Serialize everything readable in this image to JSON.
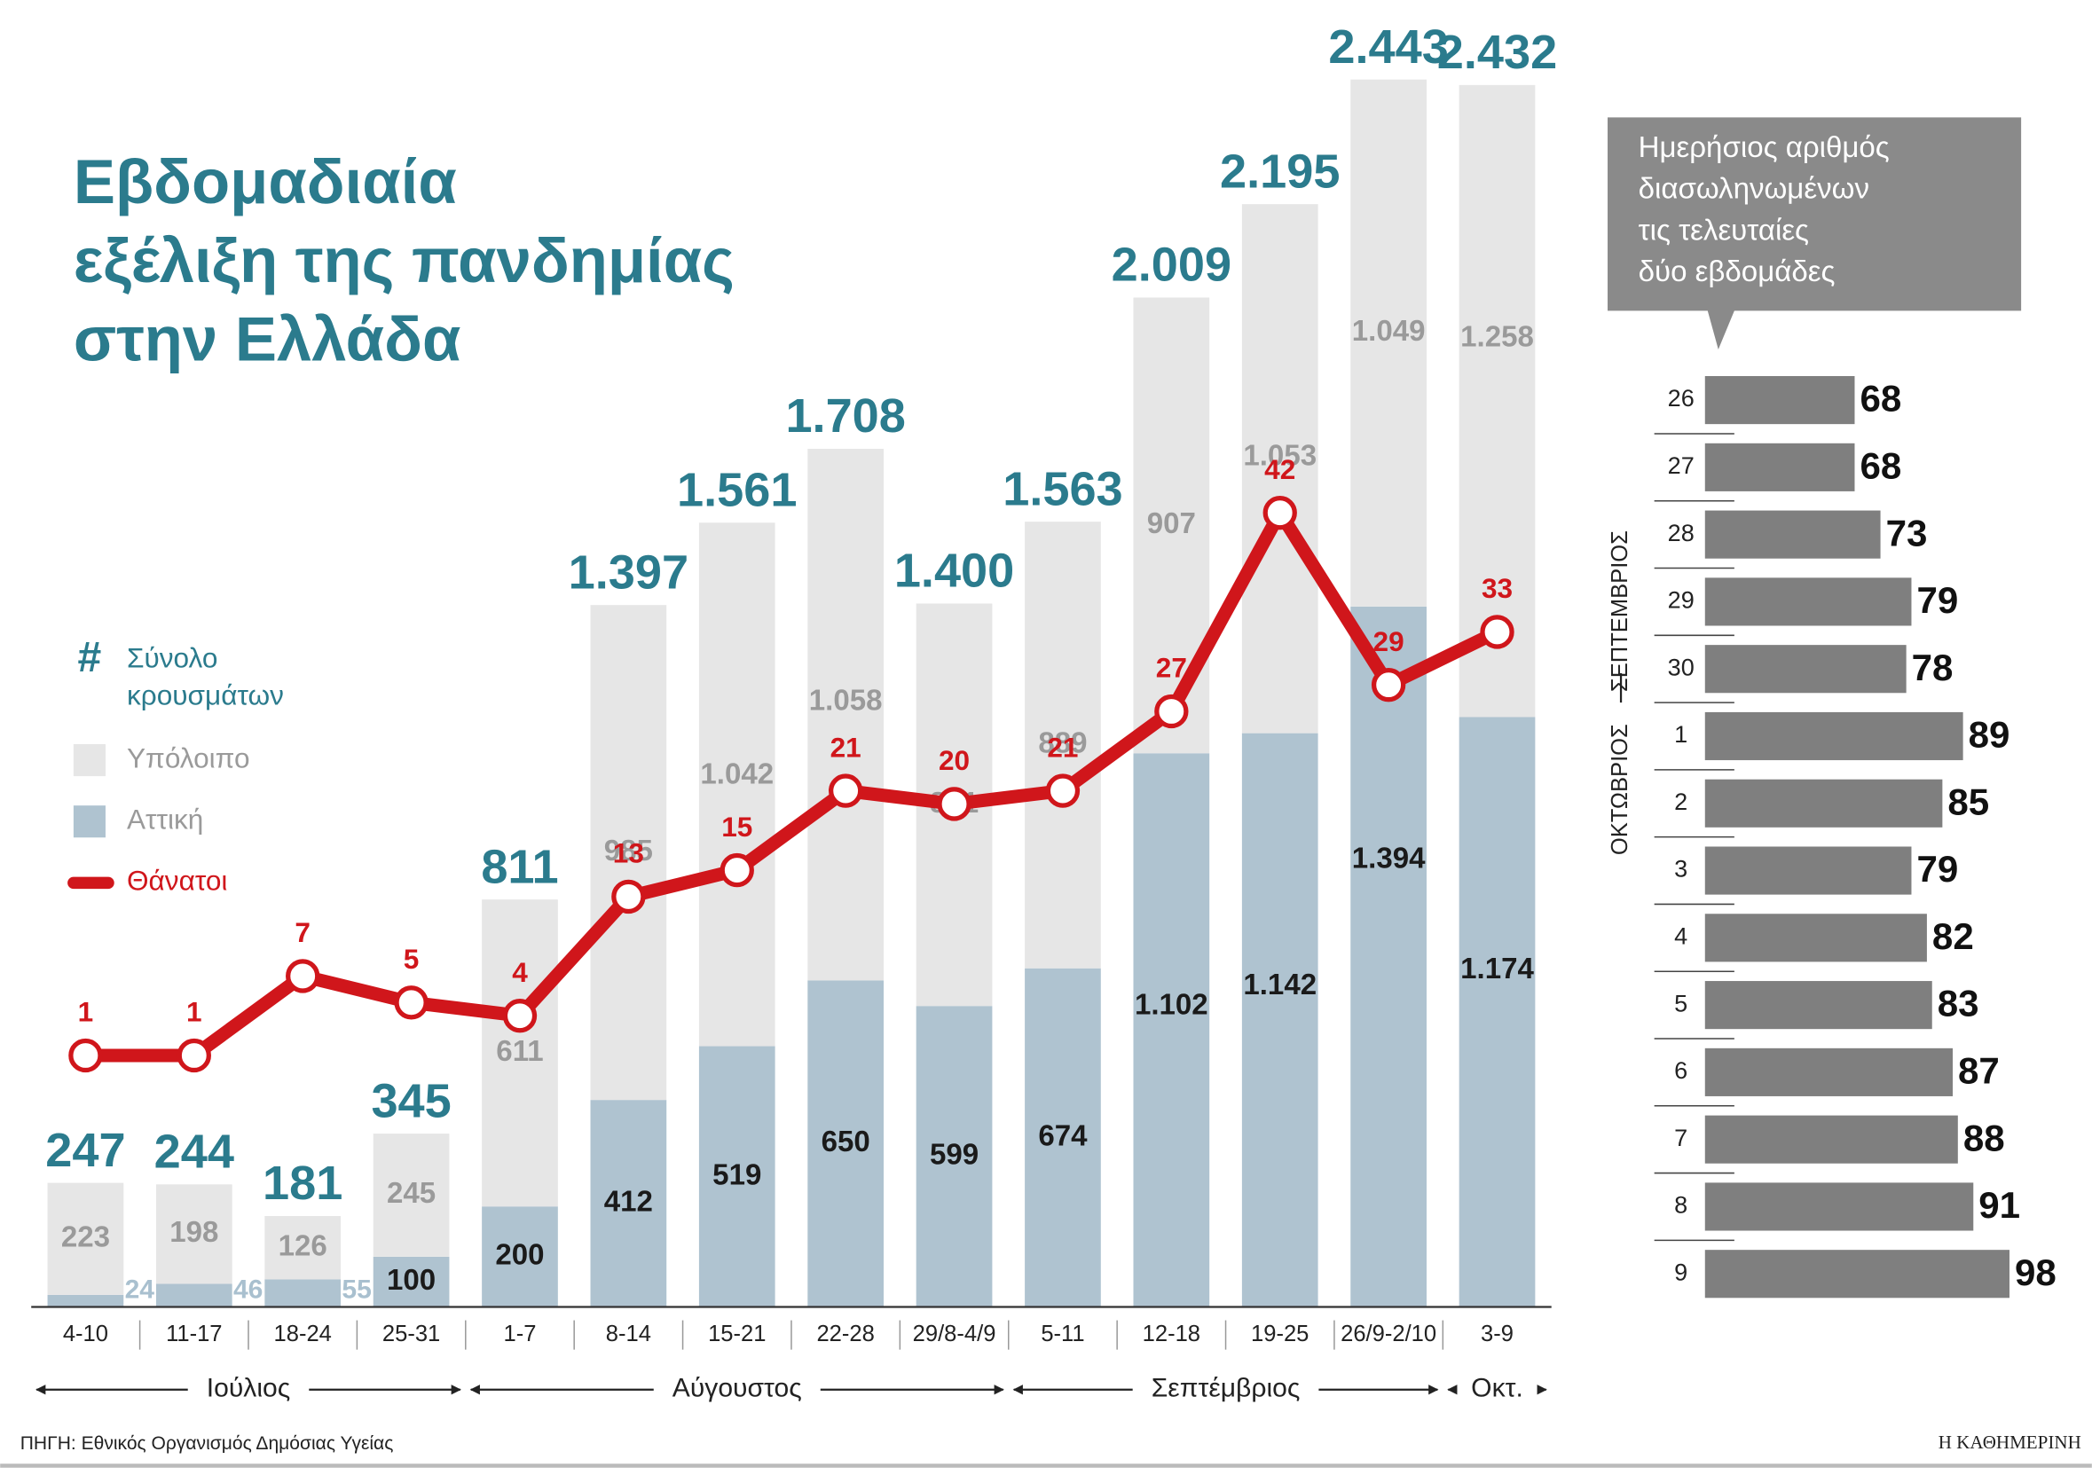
{
  "chart_data": [
    {
      "type": "combo",
      "title": [
        "Εβδομαδιαία",
        "εξέλιξη της πανδημίας",
        "στην Ελλάδα"
      ],
      "categories": [
        "4-10",
        "11-17",
        "18-24",
        "25-31",
        "1-7",
        "8-14",
        "15-21",
        "22-28",
        "29/8-4/9",
        "5-11",
        "12-18",
        "19-25",
        "26/9-2/10",
        "3-9"
      ],
      "category_groups": [
        {
          "label": "Ιούλιος",
          "count": 4
        },
        {
          "label": "Αύγουστος",
          "count": 5
        },
        {
          "label": "Σεπτέμβριος",
          "count": 4
        },
        {
          "label": "Οκτ.",
          "count": 1
        }
      ],
      "totals": {
        "name": "Σύνολο κρουσμάτων",
        "marker": "#",
        "color": "#2b7b8d",
        "values": [
          247,
          244,
          181,
          345,
          811,
          1397,
          1561,
          1708,
          1400,
          1563,
          2009,
          2195,
          2443,
          2432
        ],
        "value_labels": [
          "247",
          "244",
          "181",
          "345",
          "811",
          "1.397",
          "1.561",
          "1.708",
          "1.400",
          "1.563",
          "2.009",
          "2.195",
          "2.443",
          "2.432"
        ]
      },
      "series": [
        {
          "name": "Αττική",
          "color": "#afc3d0",
          "label_color": "#1a1a1a",
          "outside_label_color": "#a9c0cf",
          "values": [
            24,
            46,
            55,
            100,
            200,
            412,
            519,
            650,
            599,
            674,
            1102,
            1142,
            1394,
            1174
          ],
          "value_labels": [
            "24",
            "46",
            "55",
            "100",
            "200",
            "412",
            "519",
            "650",
            "599",
            "674",
            "1.102",
            "1.142",
            "1.394",
            "1.174"
          ]
        },
        {
          "name": "Υπόλοιπο",
          "color": "#e6e6e6",
          "label_color": "#9a9a9a",
          "values": [
            223,
            198,
            126,
            245,
            611,
            985,
            1042,
            1058,
            801,
            889,
            907,
            1053,
            1049,
            1258
          ],
          "value_labels": [
            "223",
            "198",
            "126",
            "245",
            "611",
            "985",
            "1.042",
            "1.058",
            "801",
            "889",
            "907",
            "1.053",
            "1.049",
            "1.258"
          ]
        },
        {
          "name": "Θάνατοι",
          "color": "#d0161b",
          "axis": "y2",
          "line": true,
          "values": [
            1,
            1,
            7,
            5,
            4,
            13,
            15,
            21,
            20,
            21,
            27,
            42,
            29,
            33
          ]
        }
      ],
      "ylim": [
        0,
        2450
      ],
      "y2lim": [
        -18,
        75
      ]
    },
    {
      "type": "hbar",
      "title": [
        "Ημερήσιος αριθμός",
        "διασωληνωμένων",
        "τις τελευταίες",
        "δύο εβδομάδες"
      ],
      "categories": [
        "26",
        "27",
        "28",
        "29",
        "30",
        "1",
        "2",
        "3",
        "4",
        "5",
        "6",
        "7",
        "8",
        "9"
      ],
      "category_groups": [
        {
          "label": "ΣΕΠΤΕΜΒΡΙΟΣ",
          "count": 5
        },
        {
          "label": "ΟΚΤΩΒΡΙΟΣ",
          "count": 9
        }
      ],
      "values": [
        68,
        68,
        73,
        79,
        78,
        89,
        85,
        79,
        82,
        83,
        87,
        88,
        91,
        98
      ],
      "color": "#7f7f7f",
      "xlim": [
        39,
        100
      ]
    }
  ],
  "source": "ΠΗΓΗ: Εθνικός Οργανισμός Δημόσιας Υγείας",
  "publisher": "Η ΚΑΘΗΜΕΡΙΝΗ"
}
